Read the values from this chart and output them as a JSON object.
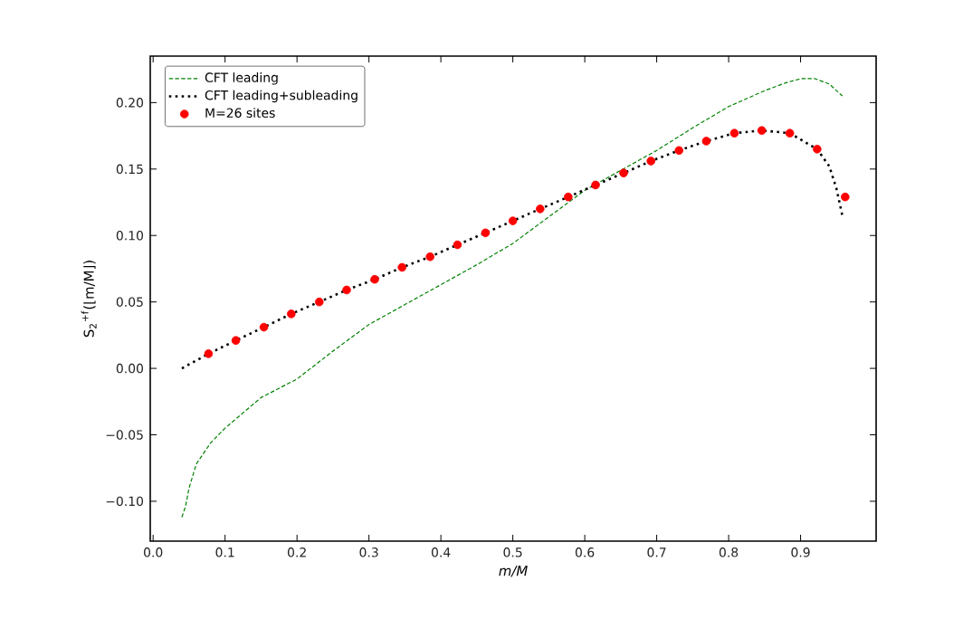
{
  "chart_data": {
    "type": "line",
    "xlabel": "m/M",
    "ylabel": "S$_{2}$$^{+f}$(⌊m/M⌋)",
    "xlim": [
      -0.004,
      1.005
    ],
    "ylim": [
      -0.13,
      0.235
    ],
    "xticks": [
      {
        "value": 0.0,
        "label": "0.0"
      },
      0.1,
      0.2,
      0.3,
      0.4,
      0.5,
      0.6,
      0.7,
      0.8,
      0.9
    ],
    "yticks": [
      {
        "value": -0.1,
        "label": "−0.10"
      },
      {
        "value": -0.05,
        "label": "−0.05"
      },
      {
        "value": 0.0,
        "label": "0.00"
      },
      0.05,
      {
        "value": 0.1,
        "label": "0.10"
      },
      0.15,
      {
        "value": 0.2,
        "label": "0.20"
      }
    ],
    "grid": false,
    "legend": "top left",
    "series": [
      {
        "name": "CFT leading",
        "color": "#008000",
        "line_style": "dashed",
        "marker": "none",
        "x": [
          0.04,
          0.045,
          0.05,
          0.06,
          0.08,
          0.1,
          0.15,
          0.2,
          0.25,
          0.3,
          0.35,
          0.4,
          0.45,
          0.5,
          0.55,
          0.6,
          0.65,
          0.7,
          0.75,
          0.8,
          0.85,
          0.88,
          0.9,
          0.92,
          0.94,
          0.958
        ],
        "values": [
          -0.112,
          -0.104,
          -0.09,
          -0.072,
          -0.056,
          -0.045,
          -0.022,
          -0.008,
          0.013,
          0.033,
          0.048,
          0.063,
          0.078,
          0.094,
          0.114,
          0.134,
          0.149,
          0.164,
          0.181,
          0.197,
          0.209,
          0.215,
          0.218,
          0.218,
          0.214,
          0.205
        ]
      },
      {
        "name": "CFT leading+subleading",
        "color": "#000000",
        "line_style": "dotted",
        "marker": "none",
        "x": [
          0.04,
          0.077,
          0.115,
          0.154,
          0.192,
          0.231,
          0.269,
          0.308,
          0.346,
          0.385,
          0.423,
          0.462,
          0.5,
          0.538,
          0.577,
          0.615,
          0.654,
          0.692,
          0.731,
          0.769,
          0.808,
          0.846,
          0.885,
          0.923,
          0.94,
          0.95,
          0.958
        ],
        "values": [
          0.0,
          0.011,
          0.021,
          0.031,
          0.041,
          0.05,
          0.059,
          0.067,
          0.076,
          0.084,
          0.093,
          0.102,
          0.111,
          0.12,
          0.129,
          0.138,
          0.147,
          0.156,
          0.164,
          0.171,
          0.177,
          0.179,
          0.177,
          0.165,
          0.152,
          0.135,
          0.115
        ]
      },
      {
        "name": "M=26 sites",
        "type": "scatter",
        "color": "#ff0000",
        "marker": "circle",
        "x": [
          0.077,
          0.115,
          0.154,
          0.192,
          0.231,
          0.269,
          0.308,
          0.346,
          0.385,
          0.423,
          0.462,
          0.5,
          0.538,
          0.577,
          0.615,
          0.654,
          0.692,
          0.731,
          0.769,
          0.808,
          0.846,
          0.885,
          0.923,
          0.962
        ],
        "values": [
          0.011,
          0.021,
          0.031,
          0.041,
          0.05,
          0.059,
          0.067,
          0.076,
          0.084,
          0.093,
          0.102,
          0.111,
          0.12,
          0.129,
          0.138,
          0.147,
          0.156,
          0.164,
          0.171,
          0.177,
          0.179,
          0.177,
          0.165,
          0.129
        ]
      }
    ]
  }
}
